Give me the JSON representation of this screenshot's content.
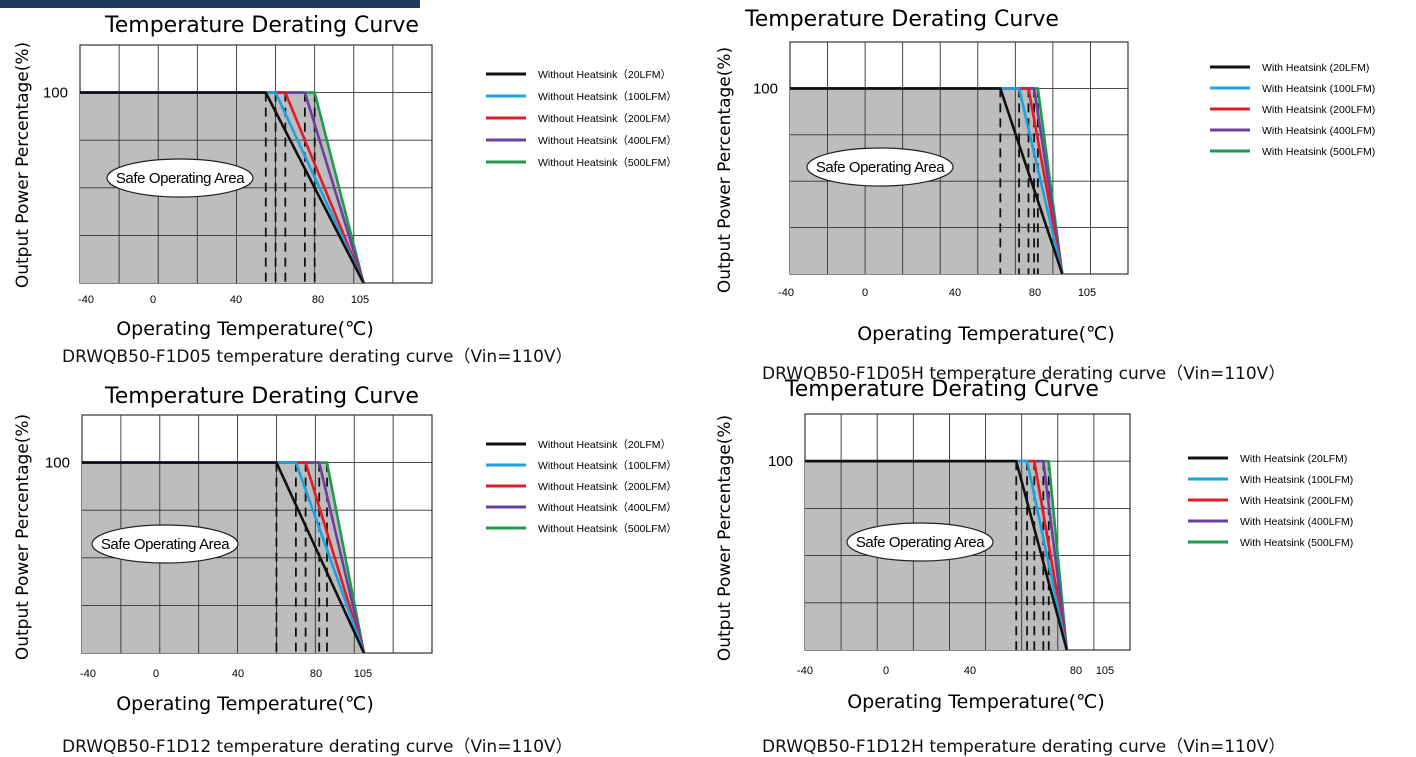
{
  "colors": {
    "plot_fill": "#bdbdbd",
    "grid": "#333333",
    "series": [
      "#111111",
      "#1aa3e0",
      "#e01b2a",
      "#6a3fa0",
      "#1e9a4a"
    ]
  },
  "chart_data": [
    {
      "type": "line",
      "title": "Temperature Derating Curve",
      "xlabel": "Operating Temperature(℃)",
      "ylabel": "Output Power Percentage(%)",
      "caption": "DRWQB50-F1D05 temperature derating curve（Vin=110V）",
      "x_ticks": [
        "-40",
        "0",
        "40",
        "80",
        "105"
      ],
      "y_ticks": [
        "100"
      ],
      "xlim": [
        -40,
        140
      ],
      "ylim": [
        0,
        100
      ],
      "area_label": "Safe Operating Area",
      "grid": true,
      "legend_placement": "right",
      "series": [
        {
          "name": "Without Heatsink（20LFM）",
          "points": [
            [
              -40,
              100
            ],
            [
              55,
              100
            ],
            [
              105,
              0
            ]
          ]
        },
        {
          "name": "Without Heatsink（100LFM）",
          "points": [
            [
              -40,
              100
            ],
            [
              60,
              100
            ],
            [
              105,
              0
            ]
          ]
        },
        {
          "name": "Without Heatsink（200LFM）",
          "points": [
            [
              -40,
              100
            ],
            [
              65,
              100
            ],
            [
              105,
              0
            ]
          ]
        },
        {
          "name": "Without Heatsink（400LFM）",
          "points": [
            [
              -40,
              100
            ],
            [
              75,
              100
            ],
            [
              105,
              0
            ]
          ]
        },
        {
          "name": "Without Heatsink（500LFM）",
          "points": [
            [
              -40,
              100
            ],
            [
              80,
              100
            ],
            [
              105,
              0
            ]
          ]
        }
      ]
    },
    {
      "type": "line",
      "title": "Temperature Derating Curve",
      "xlabel": "Operating Temperature(℃)",
      "ylabel": "Output Power Percentage(%)",
      "caption": "DRWQB50-F1D05H temperature derating curve（Vin=110V）",
      "x_ticks": [
        "-40",
        "0",
        "40",
        "80",
        "105"
      ],
      "y_ticks": [
        "100"
      ],
      "xlim": [
        -40,
        140
      ],
      "ylim": [
        0,
        100
      ],
      "area_label": "Safe Operating Area",
      "grid": true,
      "legend_placement": "right",
      "series": [
        {
          "name": "With Heatsink (20LFM)",
          "points": [
            [
              -40,
              100
            ],
            [
              72,
              100
            ],
            [
              105,
              0
            ]
          ]
        },
        {
          "name": "With Heatsink (100LFM)",
          "points": [
            [
              -40,
              100
            ],
            [
              82,
              100
            ],
            [
              105,
              0
            ]
          ]
        },
        {
          "name": "With Heatsink (200LFM)",
          "points": [
            [
              -40,
              100
            ],
            [
              87,
              100
            ],
            [
              105,
              0
            ]
          ]
        },
        {
          "name": "With Heatsink (400LFM)",
          "points": [
            [
              -40,
              100
            ],
            [
              90,
              100
            ],
            [
              105,
              0
            ]
          ]
        },
        {
          "name": "With Heatsink (500LFM)",
          "points": [
            [
              -40,
              100
            ],
            [
              92,
              100
            ],
            [
              105,
              0
            ]
          ]
        }
      ]
    },
    {
      "type": "line",
      "title": "Temperature Derating Curve",
      "xlabel": "Operating Temperature(℃)",
      "ylabel": "Output Power Percentage(%)",
      "caption": "DRWQB50-F1D12 temperature derating curve（Vin=110V）",
      "x_ticks": [
        "-40",
        "0",
        "40",
        "80",
        "105"
      ],
      "y_ticks": [
        "100"
      ],
      "xlim": [
        -40,
        140
      ],
      "ylim": [
        0,
        100
      ],
      "area_label": "Safe Operating Area",
      "grid": true,
      "legend_placement": "right",
      "series": [
        {
          "name": "Without Heatsink（20LFM）",
          "points": [
            [
              -40,
              100
            ],
            [
              60,
              100
            ],
            [
              105,
              0
            ]
          ]
        },
        {
          "name": "Without Heatsink（100LFM）",
          "points": [
            [
              -40,
              100
            ],
            [
              70,
              100
            ],
            [
              105,
              0
            ]
          ]
        },
        {
          "name": "Without Heatsink（200LFM）",
          "points": [
            [
              -40,
              100
            ],
            [
              75,
              100
            ],
            [
              105,
              0
            ]
          ]
        },
        {
          "name": "Without Heatsink（400LFM）",
          "points": [
            [
              -40,
              100
            ],
            [
              82,
              100
            ],
            [
              105,
              0
            ]
          ]
        },
        {
          "name": "Without Heatsink（500LFM）",
          "points": [
            [
              -40,
              100
            ],
            [
              86,
              100
            ],
            [
              105,
              0
            ]
          ]
        }
      ]
    },
    {
      "type": "line",
      "title": "Temperature Derating Curve",
      "xlabel": "Operating Temperature(℃)",
      "ylabel": "Output Power Percentage(%)",
      "caption": "DRWQB50-F1D12H temperature derating curve（Vin=110V）",
      "x_ticks": [
        "-40",
        "0",
        "40",
        "80",
        "105"
      ],
      "y_ticks": [
        "100"
      ],
      "xlim": [
        -40,
        140
      ],
      "ylim": [
        0,
        100
      ],
      "area_label": "Safe Operating Area",
      "grid": true,
      "legend_placement": "right",
      "series": [
        {
          "name": "With Heatsink (20LFM)",
          "points": [
            [
              -40,
              100
            ],
            [
              77,
              100
            ],
            [
              105,
              0
            ]
          ]
        },
        {
          "name": "With Heatsink (100LFM)",
          "points": [
            [
              -40,
              100
            ],
            [
              83,
              100
            ],
            [
              105,
              0
            ]
          ]
        },
        {
          "name": "With Heatsink (200LFM)",
          "points": [
            [
              -40,
              100
            ],
            [
              87,
              100
            ],
            [
              105,
              0
            ]
          ]
        },
        {
          "name": "With Heatsink (400LFM)",
          "points": [
            [
              -40,
              100
            ],
            [
              92,
              100
            ],
            [
              105,
              0
            ]
          ]
        },
        {
          "name": "With Heatsink (500LFM)",
          "points": [
            [
              -40,
              100
            ],
            [
              95,
              100
            ],
            [
              105,
              0
            ]
          ]
        }
      ]
    }
  ]
}
